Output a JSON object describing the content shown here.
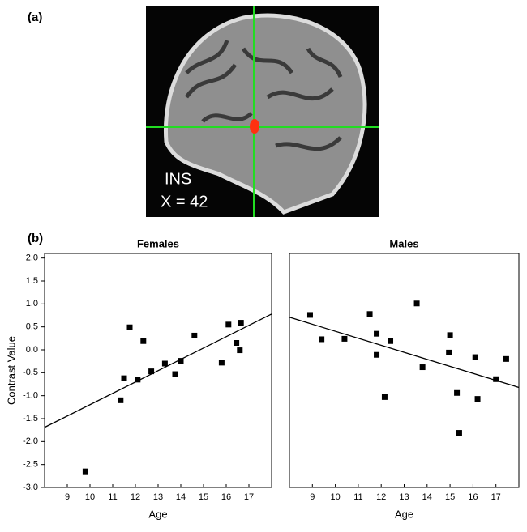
{
  "figure": {
    "panel_a_label": "(a)",
    "panel_b_label": "(b)",
    "region_label": "INS",
    "coordinate_label": "X = 42"
  },
  "chart_data": [
    {
      "type": "scatter",
      "title": "Females",
      "x_label": "Age",
      "y_label": "Contrast Value",
      "color": "#000000",
      "x": [
        9.8,
        11.35,
        11.5,
        11.75,
        12.1,
        12.35,
        12.7,
        13.3,
        13.75,
        14.0,
        14.6,
        15.8,
        16.1,
        16.45,
        16.6,
        16.65
      ],
      "values": [
        -2.65,
        -1.1,
        -0.62,
        0.49,
        -0.65,
        0.19,
        -0.47,
        -0.3,
        -0.53,
        -0.24,
        0.31,
        -0.28,
        0.55,
        0.15,
        -0.01,
        0.59
      ],
      "fit_line": {
        "x": [
          8,
          18
        ],
        "y": [
          -1.69,
          0.78
        ]
      },
      "xlim": [
        8,
        18
      ],
      "ylim": [
        -3.0,
        2.1
      ],
      "xticks": [
        9,
        10,
        11,
        12,
        13,
        14,
        15,
        16,
        17
      ],
      "yticks": [
        {
          "value": 2,
          "label": "2.0"
        },
        {
          "value": 1.5,
          "label": "1.5"
        },
        {
          "value": 1,
          "label": "1.0"
        },
        {
          "value": 0.5,
          "label": "0.5"
        },
        {
          "value": 0,
          "label": "0.0"
        },
        {
          "value": -0.5,
          "label": "-0.5"
        },
        {
          "value": -1,
          "label": "-1.0"
        },
        {
          "value": -1.5,
          "label": "-1.5"
        },
        {
          "value": -2,
          "label": "-2.0"
        },
        {
          "value": -2.5,
          "label": "-2.5"
        },
        {
          "value": -3,
          "label": "-3.0"
        }
      ]
    },
    {
      "type": "scatter",
      "title": "Males",
      "x_label": "Age",
      "color": "#000000",
      "x": [
        8.9,
        9.4,
        10.4,
        11.5,
        11.8,
        11.8,
        12.15,
        12.4,
        13.55,
        13.8,
        14.95,
        15.0,
        15.3,
        15.4,
        16.1,
        16.2,
        17.0,
        17.45
      ],
      "values": [
        0.76,
        0.23,
        0.24,
        0.78,
        0.35,
        -0.11,
        -1.03,
        0.19,
        1.01,
        -0.38,
        -0.06,
        0.32,
        -0.94,
        -1.81,
        -0.16,
        -1.07,
        -0.64,
        -0.2
      ],
      "fit_line": {
        "x": [
          8,
          18
        ],
        "y": [
          0.71,
          -0.82
        ]
      },
      "xlim": [
        8,
        18
      ],
      "ylim": [
        -3.0,
        2.1
      ],
      "xticks": [
        9,
        10,
        11,
        12,
        13,
        14,
        15,
        16,
        17
      ]
    }
  ]
}
